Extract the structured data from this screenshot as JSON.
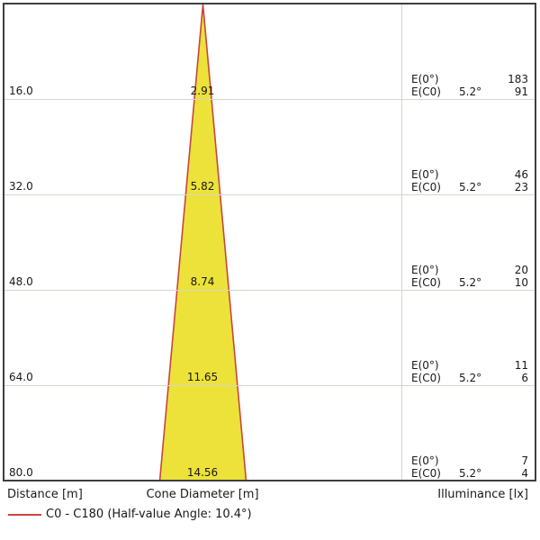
{
  "colors": {
    "cone_fill": "#ece23a",
    "cone_stroke": "#c8463c",
    "frame_border": "#3f3f3f",
    "gridline": "#d6d6cf",
    "text": "#191919"
  },
  "chart_data": {
    "type": "area",
    "title": "Light cone diagram (beam spread with distance)",
    "beam_label": "C0 - C180",
    "half_value_angle_deg": 10.4,
    "eval_angle_deg": 5.2,
    "distances_m": [
      16.0,
      32.0,
      48.0,
      64.0,
      80.0
    ],
    "cone_diameters_m": [
      2.91,
      5.82,
      8.74,
      11.65,
      14.56
    ],
    "illuminance_E0_lx": [
      183,
      46,
      20,
      11,
      7
    ],
    "illuminance_EC0_lx": [
      91,
      23,
      10,
      6,
      4
    ],
    "xlabel": "Cone Diameter [m]",
    "ylabel_left": "Distance [m]",
    "ylabel_right": "Illuminance [lx]",
    "grid": true,
    "legend_position": "bottom-left"
  },
  "rows": [
    {
      "distance": "16.0",
      "diameter": "2.91",
      "e0_label": "E(0°)",
      "e0_value": "183",
      "ec0_label": "E(C0)",
      "angle": "5.2°",
      "ec0_value": "91"
    },
    {
      "distance": "32.0",
      "diameter": "5.82",
      "e0_label": "E(0°)",
      "e0_value": "46",
      "ec0_label": "E(C0)",
      "angle": "5.2°",
      "ec0_value": "23"
    },
    {
      "distance": "48.0",
      "diameter": "8.74",
      "e0_label": "E(0°)",
      "e0_value": "20",
      "ec0_label": "E(C0)",
      "angle": "5.2°",
      "ec0_value": "10"
    },
    {
      "distance": "64.0",
      "diameter": "11.65",
      "e0_label": "E(0°)",
      "e0_value": "11",
      "ec0_label": "E(C0)",
      "angle": "5.2°",
      "ec0_value": "6"
    },
    {
      "distance": "80.0",
      "diameter": "14.56",
      "e0_label": "E(0°)",
      "e0_value": "7",
      "ec0_label": "E(C0)",
      "angle": "5.2°",
      "ec0_value": "4"
    }
  ],
  "footer": {
    "distance": "Distance [m]",
    "cone_diameter": "Cone Diameter [m]",
    "illuminance": "Illuminance [lx]"
  },
  "legend": {
    "label": "C0 - C180 (Half-value Angle: 10.4°)"
  }
}
